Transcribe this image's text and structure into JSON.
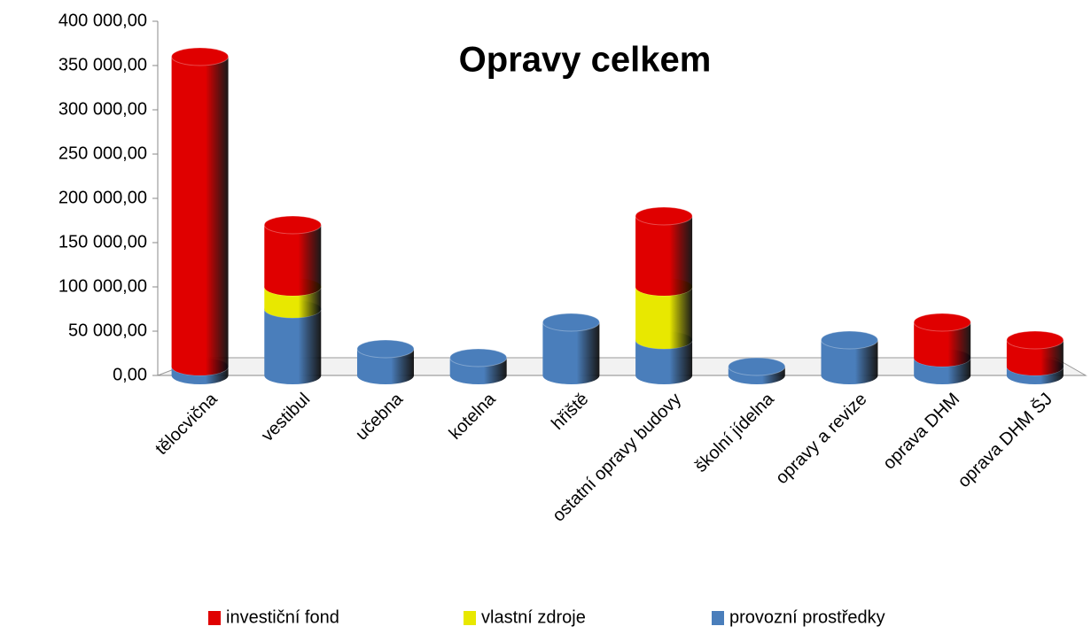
{
  "chart_data": {
    "type": "bar",
    "stacked": true,
    "title": "Opravy celkem",
    "categories": [
      "tělocvična",
      "vestibul",
      "učebna",
      "kotelna",
      "hřiště",
      "ostatní opravy budovy",
      "školní jídelna",
      "opravy a revize",
      "oprava DHM",
      "oprava DHM ŠJ"
    ],
    "series": [
      {
        "name": "provozní prostředky",
        "color": "#4a7ebb",
        "values": [
          10000,
          75000,
          30000,
          20000,
          60000,
          40000,
          10000,
          40000,
          20000,
          10000
        ]
      },
      {
        "name": "vlastní zdroje",
        "color": "#e8e800",
        "values": [
          null,
          25000,
          null,
          null,
          null,
          60000,
          null,
          null,
          null,
          null
        ]
      },
      {
        "name": "investiční fond",
        "color": "#e00000",
        "values": [
          350000,
          70000,
          null,
          null,
          null,
          80000,
          null,
          null,
          40000,
          30000
        ]
      }
    ],
    "legend_order": [
      2,
      1,
      0
    ],
    "ylim": [
      0,
      400000
    ],
    "yticks": [
      {
        "value": 0,
        "label": "0,00"
      },
      {
        "value": 50000,
        "label": "50 000,00"
      },
      {
        "value": 100000,
        "label": "100 000,00"
      },
      {
        "value": 150000,
        "label": "150 000,00"
      },
      {
        "value": 200000,
        "label": "200 000,00"
      },
      {
        "value": 250000,
        "label": "250 000,00"
      },
      {
        "value": 300000,
        "label": "300 000,00"
      },
      {
        "value": 350000,
        "label": "350 000,00"
      },
      {
        "value": 400000,
        "label": "400 000,00"
      }
    ],
    "grid": false,
    "legend": "bottom"
  }
}
